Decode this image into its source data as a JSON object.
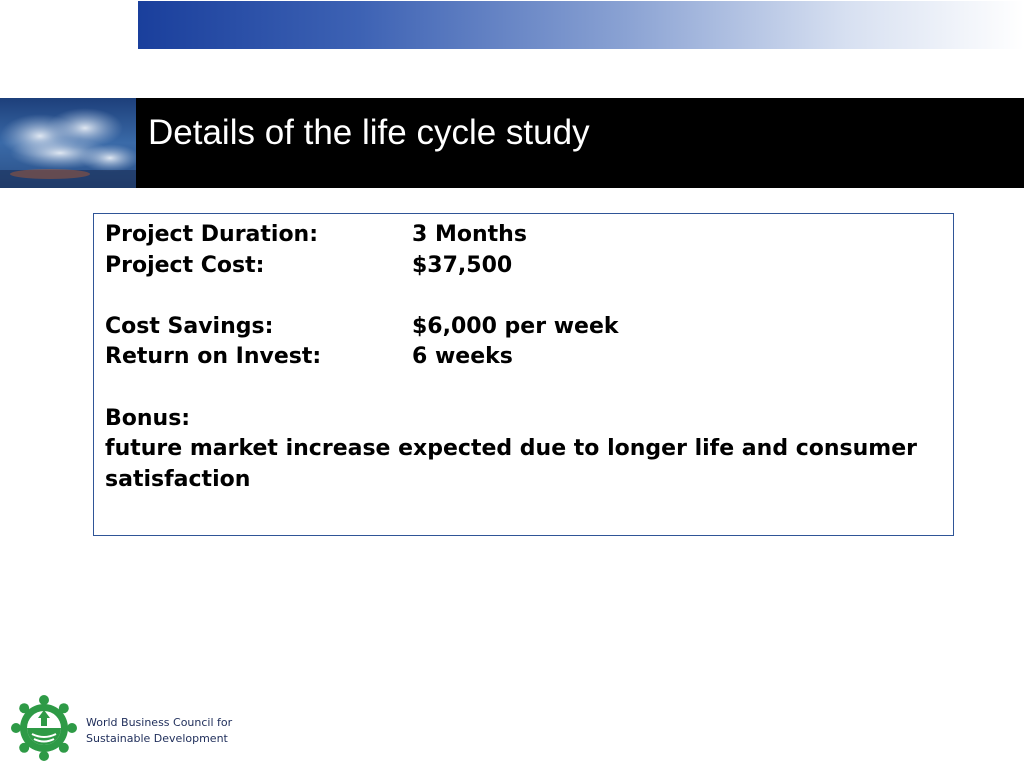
{
  "slide": {
    "title": "Details of the life cycle study"
  },
  "details": [
    {
      "label": "Project Duration:",
      "value": "3 Months"
    },
    {
      "label": "Project Cost:",
      "value": "$37,500"
    },
    {
      "label": "Cost Savings:",
      "value": "$6,000 per week"
    },
    {
      "label": "Return on Invest:",
      "value": "6 weeks"
    }
  ],
  "bonus": {
    "heading": "Bonus:",
    "text": "future market increase expected due to longer life and consumer satisfaction"
  },
  "footer": {
    "org_line1": "World Business Council for",
    "org_line2": "Sustainable Development"
  },
  "colors": {
    "banner_start": "#1a3f9c",
    "title_band": "#000000",
    "box_border": "#2f5597",
    "logo_green": "#2e9a46"
  }
}
